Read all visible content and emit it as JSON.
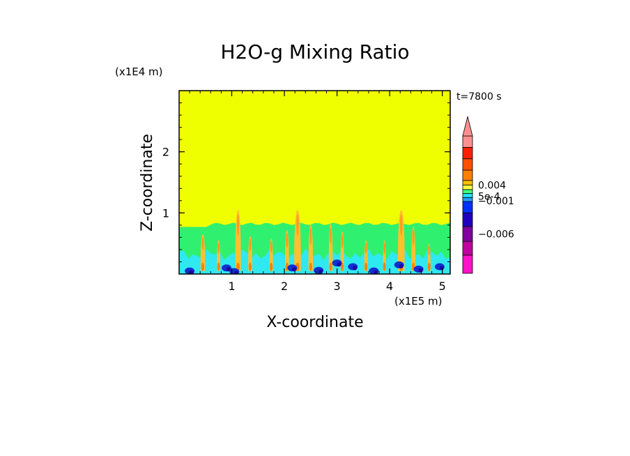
{
  "chart_data": {
    "type": "heatmap",
    "title": "H2O-g Mixing Ratio",
    "xlabel": "X-coordinate",
    "ylabel": "Z-coordinate",
    "x_scale_label": "(x1E5 m)",
    "y_scale_label": "(x1E4 m)",
    "time_label": "t=7800 s",
    "xlim": [
      0,
      5.15
    ],
    "ylim": [
      0,
      3
    ],
    "x_ticks": [
      1,
      2,
      3,
      4,
      5
    ],
    "y_ticks": [
      1,
      2
    ],
    "x_tick_labels": [
      "1",
      "2",
      "3",
      "4",
      "5"
    ],
    "y_tick_labels": [
      "1",
      "2"
    ],
    "background_color": "#f0ff00",
    "colorbar": {
      "labels": [
        "0.004",
        "5e-4",
        "−0.001",
        "−0.006"
      ],
      "label_at_band": [
        9,
        6.3,
        5.2,
        2.5
      ],
      "bands_bottom_to_top": [
        "#ff10c8",
        "#c000a0",
        "#8000a0",
        "#2000c0",
        "#0030ff",
        "#20a0ff",
        "#20e0ff",
        "#40ff80",
        "#ffff40",
        "#ffc000",
        "#ff8000",
        "#ff5000",
        "#ff2000",
        "#ff9090"
      ],
      "band_heights": [
        1.6,
        1.2,
        1.3,
        1.2,
        1.0,
        0.35,
        0.35,
        0.35,
        0.4,
        0.4,
        0.9,
        1.0,
        1.0,
        1.0
      ]
    },
    "layers": [
      {
        "name": "green-boundary-layer",
        "color": "#30f070",
        "z_top": 0.82
      },
      {
        "name": "cyan-lower-layer",
        "color": "#30e8f0",
        "z_top": 0.32
      }
    ],
    "plumes": [
      {
        "x": 0.45,
        "z_top": 0.65,
        "width": 0.08
      },
      {
        "x": 0.75,
        "z_top": 0.55,
        "width": 0.06
      },
      {
        "x": 1.12,
        "z_top": 1.05,
        "width": 0.1
      },
      {
        "x": 1.35,
        "z_top": 0.62,
        "width": 0.07
      },
      {
        "x": 1.75,
        "z_top": 0.58,
        "width": 0.06
      },
      {
        "x": 2.05,
        "z_top": 0.72,
        "width": 0.07
      },
      {
        "x": 2.25,
        "z_top": 1.05,
        "width": 0.12
      },
      {
        "x": 2.5,
        "z_top": 0.8,
        "width": 0.08
      },
      {
        "x": 2.88,
        "z_top": 0.82,
        "width": 0.07
      },
      {
        "x": 3.1,
        "z_top": 0.7,
        "width": 0.06
      },
      {
        "x": 3.55,
        "z_top": 0.55,
        "width": 0.06
      },
      {
        "x": 3.9,
        "z_top": 0.55,
        "width": 0.05
      },
      {
        "x": 4.22,
        "z_top": 1.05,
        "width": 0.12
      },
      {
        "x": 4.45,
        "z_top": 0.78,
        "width": 0.07
      },
      {
        "x": 4.75,
        "z_top": 0.5,
        "width": 0.05
      }
    ],
    "dry_spots": [
      {
        "x": 0.2,
        "z": 0.05
      },
      {
        "x": 0.9,
        "z": 0.1
      },
      {
        "x": 1.05,
        "z": 0.04
      },
      {
        "x": 2.15,
        "z": 0.1
      },
      {
        "x": 2.65,
        "z": 0.06
      },
      {
        "x": 3.0,
        "z": 0.18
      },
      {
        "x": 3.3,
        "z": 0.12
      },
      {
        "x": 3.7,
        "z": 0.05
      },
      {
        "x": 4.18,
        "z": 0.15
      },
      {
        "x": 4.55,
        "z": 0.08
      },
      {
        "x": 4.95,
        "z": 0.12
      }
    ]
  }
}
